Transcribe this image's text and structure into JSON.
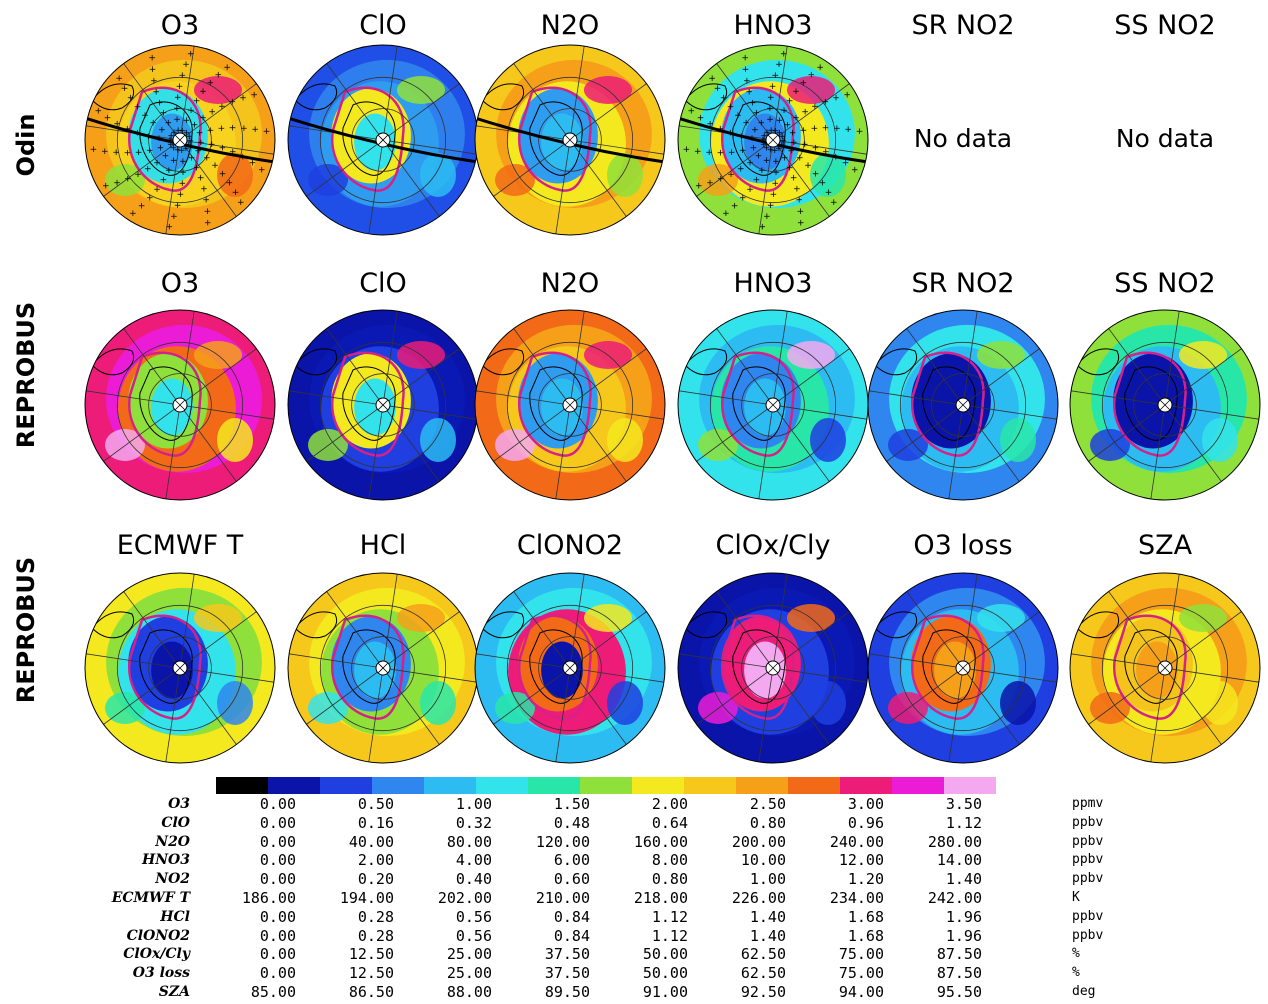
{
  "rows": [
    {
      "label": "Odin",
      "panels": [
        {
          "title": "O3",
          "kind": "map",
          "scheme": "odin_o3",
          "tracks": true
        },
        {
          "title": "ClO",
          "kind": "map",
          "scheme": "odin_clo",
          "tracks": false
        },
        {
          "title": "N2O",
          "kind": "map",
          "scheme": "odin_n2o",
          "tracks": false
        },
        {
          "title": "HNO3",
          "kind": "map",
          "scheme": "odin_hno3",
          "tracks": true
        },
        {
          "title": "SR NO2",
          "kind": "nodata",
          "text": "No data"
        },
        {
          "title": "SS NO2",
          "kind": "nodata",
          "text": "No data"
        }
      ]
    },
    {
      "label": "REPROBUS",
      "panels": [
        {
          "title": "O3",
          "kind": "map",
          "scheme": "rep_o3"
        },
        {
          "title": "ClO",
          "kind": "map",
          "scheme": "rep_clo"
        },
        {
          "title": "N2O",
          "kind": "map",
          "scheme": "rep_n2o"
        },
        {
          "title": "HNO3",
          "kind": "map",
          "scheme": "rep_hno3"
        },
        {
          "title": "SR NO2",
          "kind": "map",
          "scheme": "rep_no2"
        },
        {
          "title": "SS NO2",
          "kind": "map",
          "scheme": "rep_ssno2"
        }
      ]
    },
    {
      "label": "REPROBUS",
      "panels": [
        {
          "title": "ECMWF T",
          "kind": "map",
          "scheme": "rep_t"
        },
        {
          "title": "HCl",
          "kind": "map",
          "scheme": "rep_hcl"
        },
        {
          "title": "ClONO2",
          "kind": "map",
          "scheme": "rep_clono2"
        },
        {
          "title": "ClOx/Cly",
          "kind": "map",
          "scheme": "rep_clox"
        },
        {
          "title": "O3 loss",
          "kind": "map",
          "scheme": "rep_loss"
        },
        {
          "title": "SZA",
          "kind": "map",
          "scheme": "rep_sza"
        }
      ]
    }
  ],
  "colorbar": [
    "#000000",
    "#0a14a8",
    "#1f3fe0",
    "#2f86ef",
    "#2cbcf2",
    "#33e3ec",
    "#28e6a8",
    "#8fe03a",
    "#f4e81f",
    "#f7c81c",
    "#f6a01a",
    "#f26a18",
    "#ec1c78",
    "#ec1cd6",
    "#f4a8f0"
  ],
  "legend": [
    {
      "var": "O3",
      "values": [
        "0.00",
        "0.50",
        "1.00",
        "1.50",
        "2.00",
        "2.50",
        "3.00",
        "3.50"
      ],
      "unit": "ppmv"
    },
    {
      "var": "ClO",
      "values": [
        "0.00",
        "0.16",
        "0.32",
        "0.48",
        "0.64",
        "0.80",
        "0.96",
        "1.12"
      ],
      "unit": "ppbv"
    },
    {
      "var": "N2O",
      "values": [
        "0.00",
        "40.00",
        "80.00",
        "120.00",
        "160.00",
        "200.00",
        "240.00",
        "280.00"
      ],
      "unit": "ppbv"
    },
    {
      "var": "HNO3",
      "values": [
        "0.00",
        "2.00",
        "4.00",
        "6.00",
        "8.00",
        "10.00",
        "12.00",
        "14.00"
      ],
      "unit": "ppbv"
    },
    {
      "var": "NO2",
      "values": [
        "0.00",
        "0.20",
        "0.40",
        "0.60",
        "0.80",
        "1.00",
        "1.20",
        "1.40"
      ],
      "unit": "ppbv"
    },
    {
      "var": "ECMWF T",
      "values": [
        "186.00",
        "194.00",
        "202.00",
        "210.00",
        "218.00",
        "226.00",
        "234.00",
        "242.00"
      ],
      "unit": "K"
    },
    {
      "var": "HCl",
      "values": [
        "0.00",
        "0.28",
        "0.56",
        "0.84",
        "1.12",
        "1.40",
        "1.68",
        "1.96"
      ],
      "unit": "ppbv"
    },
    {
      "var": "ClONO2",
      "values": [
        "0.00",
        "0.28",
        "0.56",
        "0.84",
        "1.12",
        "1.40",
        "1.68",
        "1.96"
      ],
      "unit": "ppbv"
    },
    {
      "var": "ClOx/Cly",
      "values": [
        "0.00",
        "12.50",
        "25.00",
        "37.50",
        "50.00",
        "62.50",
        "75.00",
        "87.50"
      ],
      "unit": "%"
    },
    {
      "var": "O3 loss",
      "values": [
        "0.00",
        "12.50",
        "25.00",
        "37.50",
        "50.00",
        "62.50",
        "75.00",
        "87.50"
      ],
      "unit": "%"
    },
    {
      "var": "SZA",
      "values": [
        "85.00",
        "86.50",
        "88.00",
        "89.50",
        "91.00",
        "92.50",
        "94.00",
        "95.50"
      ],
      "unit": "deg"
    }
  ],
  "schemes": {
    "odin_o3": {
      "outer": "#f6a01a",
      "ring": "#f4c41c",
      "mid": "#f7d21e",
      "inner": "#34e0e6",
      "core": "#2f9cf0",
      "blobs": [
        "#ec1c78",
        "#8fe03a",
        "#f26a18"
      ]
    },
    "odin_clo": {
      "outer": "#1f4fe6",
      "ring": "#2f7eee",
      "mid": "#2f9cf0",
      "inner": "#f4e81f",
      "core": "#33e3ec",
      "blobs": [
        "#8fe03a",
        "#1f3fe0",
        "#2cbcf2"
      ]
    },
    "odin_n2o": {
      "outer": "#f7c81c",
      "ring": "#f6a01a",
      "mid": "#f4e81f",
      "inner": "#2f9cf0",
      "core": "#2cbcf2",
      "blobs": [
        "#ec1c78",
        "#f26a18",
        "#8fe03a"
      ]
    },
    "odin_hno3": {
      "outer": "#8fe03a",
      "ring": "#33e3ec",
      "mid": "#f4e81f",
      "inner": "#2cbcf2",
      "core": "#2f86ef",
      "blobs": [
        "#ec1c78",
        "#f6a01a",
        "#28e6a8"
      ]
    },
    "rep_o3": {
      "outer": "#ec1c78",
      "ring": "#ec1cd6",
      "mid": "#f26a18",
      "inner": "#8fe03a",
      "core": "#33e3ec",
      "blobs": [
        "#f6a01a",
        "#f4a8f0",
        "#f4e81f"
      ]
    },
    "rep_clo": {
      "outer": "#0a14a8",
      "ring": "#0a18b4",
      "mid": "#1f3fe0",
      "inner": "#f4e81f",
      "core": "#33e3ec",
      "blobs": [
        "#ec1c78",
        "#8fe03a",
        "#2cbcf2"
      ]
    },
    "rep_n2o": {
      "outer": "#f26a18",
      "ring": "#f6a01a",
      "mid": "#f7c81c",
      "inner": "#2f9cf0",
      "core": "#2cbcf2",
      "blobs": [
        "#ec1c78",
        "#f4a8f0",
        "#f4e81f"
      ]
    },
    "rep_hno3": {
      "outer": "#33e3ec",
      "ring": "#2cbcf2",
      "mid": "#28e6a8",
      "inner": "#2f86ef",
      "core": "#2cbcf2",
      "blobs": [
        "#f4a8f0",
        "#8fe03a",
        "#1f3fe0"
      ]
    },
    "rep_no2": {
      "outer": "#2f86ef",
      "ring": "#33e3ec",
      "mid": "#2cbcf2",
      "inner": "#0a14a8",
      "core": "#0a14a8",
      "blobs": [
        "#8fe03a",
        "#1f3fe0",
        "#28e6a8"
      ]
    },
    "rep_ssno2": {
      "outer": "#8fe03a",
      "ring": "#28e6a8",
      "mid": "#2cbcf2",
      "inner": "#0a14a8",
      "core": "#0a14a8",
      "blobs": [
        "#f4e81f",
        "#1f3fe0",
        "#33e3ec"
      ]
    },
    "rep_t": {
      "outer": "#f4e81f",
      "ring": "#8fe03a",
      "mid": "#33e3ec",
      "inner": "#1f3fe0",
      "core": "#0a14a8",
      "blobs": [
        "#f7c81c",
        "#28e6a8",
        "#2f86ef"
      ]
    },
    "rep_hcl": {
      "outer": "#f7c81c",
      "ring": "#f4e81f",
      "mid": "#8fe03a",
      "inner": "#2f86ef",
      "core": "#2cbcf2",
      "blobs": [
        "#f6a01a",
        "#33e3ec",
        "#28e6a8"
      ]
    },
    "rep_clono2": {
      "outer": "#2cbcf2",
      "ring": "#33e3ec",
      "mid": "#ec1c78",
      "inner": "#f26a18",
      "core": "#0a14a8",
      "blobs": [
        "#f4e81f",
        "#28e6a8",
        "#1f3fe0"
      ]
    },
    "rep_clox": {
      "outer": "#0a14a8",
      "ring": "#0a18b4",
      "mid": "#1f3fe0",
      "inner": "#ec1c78",
      "core": "#f4a8f0",
      "blobs": [
        "#f26a18",
        "#ec1cd6",
        "#1f3fe0"
      ]
    },
    "rep_loss": {
      "outer": "#1f3fe0",
      "ring": "#2f86ef",
      "mid": "#2cbcf2",
      "inner": "#f26a18",
      "core": "#f6a01a",
      "blobs": [
        "#33e3ec",
        "#ec1c78",
        "#0a14a8"
      ]
    },
    "rep_sza": {
      "outer": "#f7c81c",
      "ring": "#f6a01a",
      "mid": "#f4e81f",
      "inner": "#f4c41c",
      "core": "#f6a01a",
      "blobs": [
        "#8fe03a",
        "#f26a18",
        "#f4e81f"
      ]
    }
  }
}
